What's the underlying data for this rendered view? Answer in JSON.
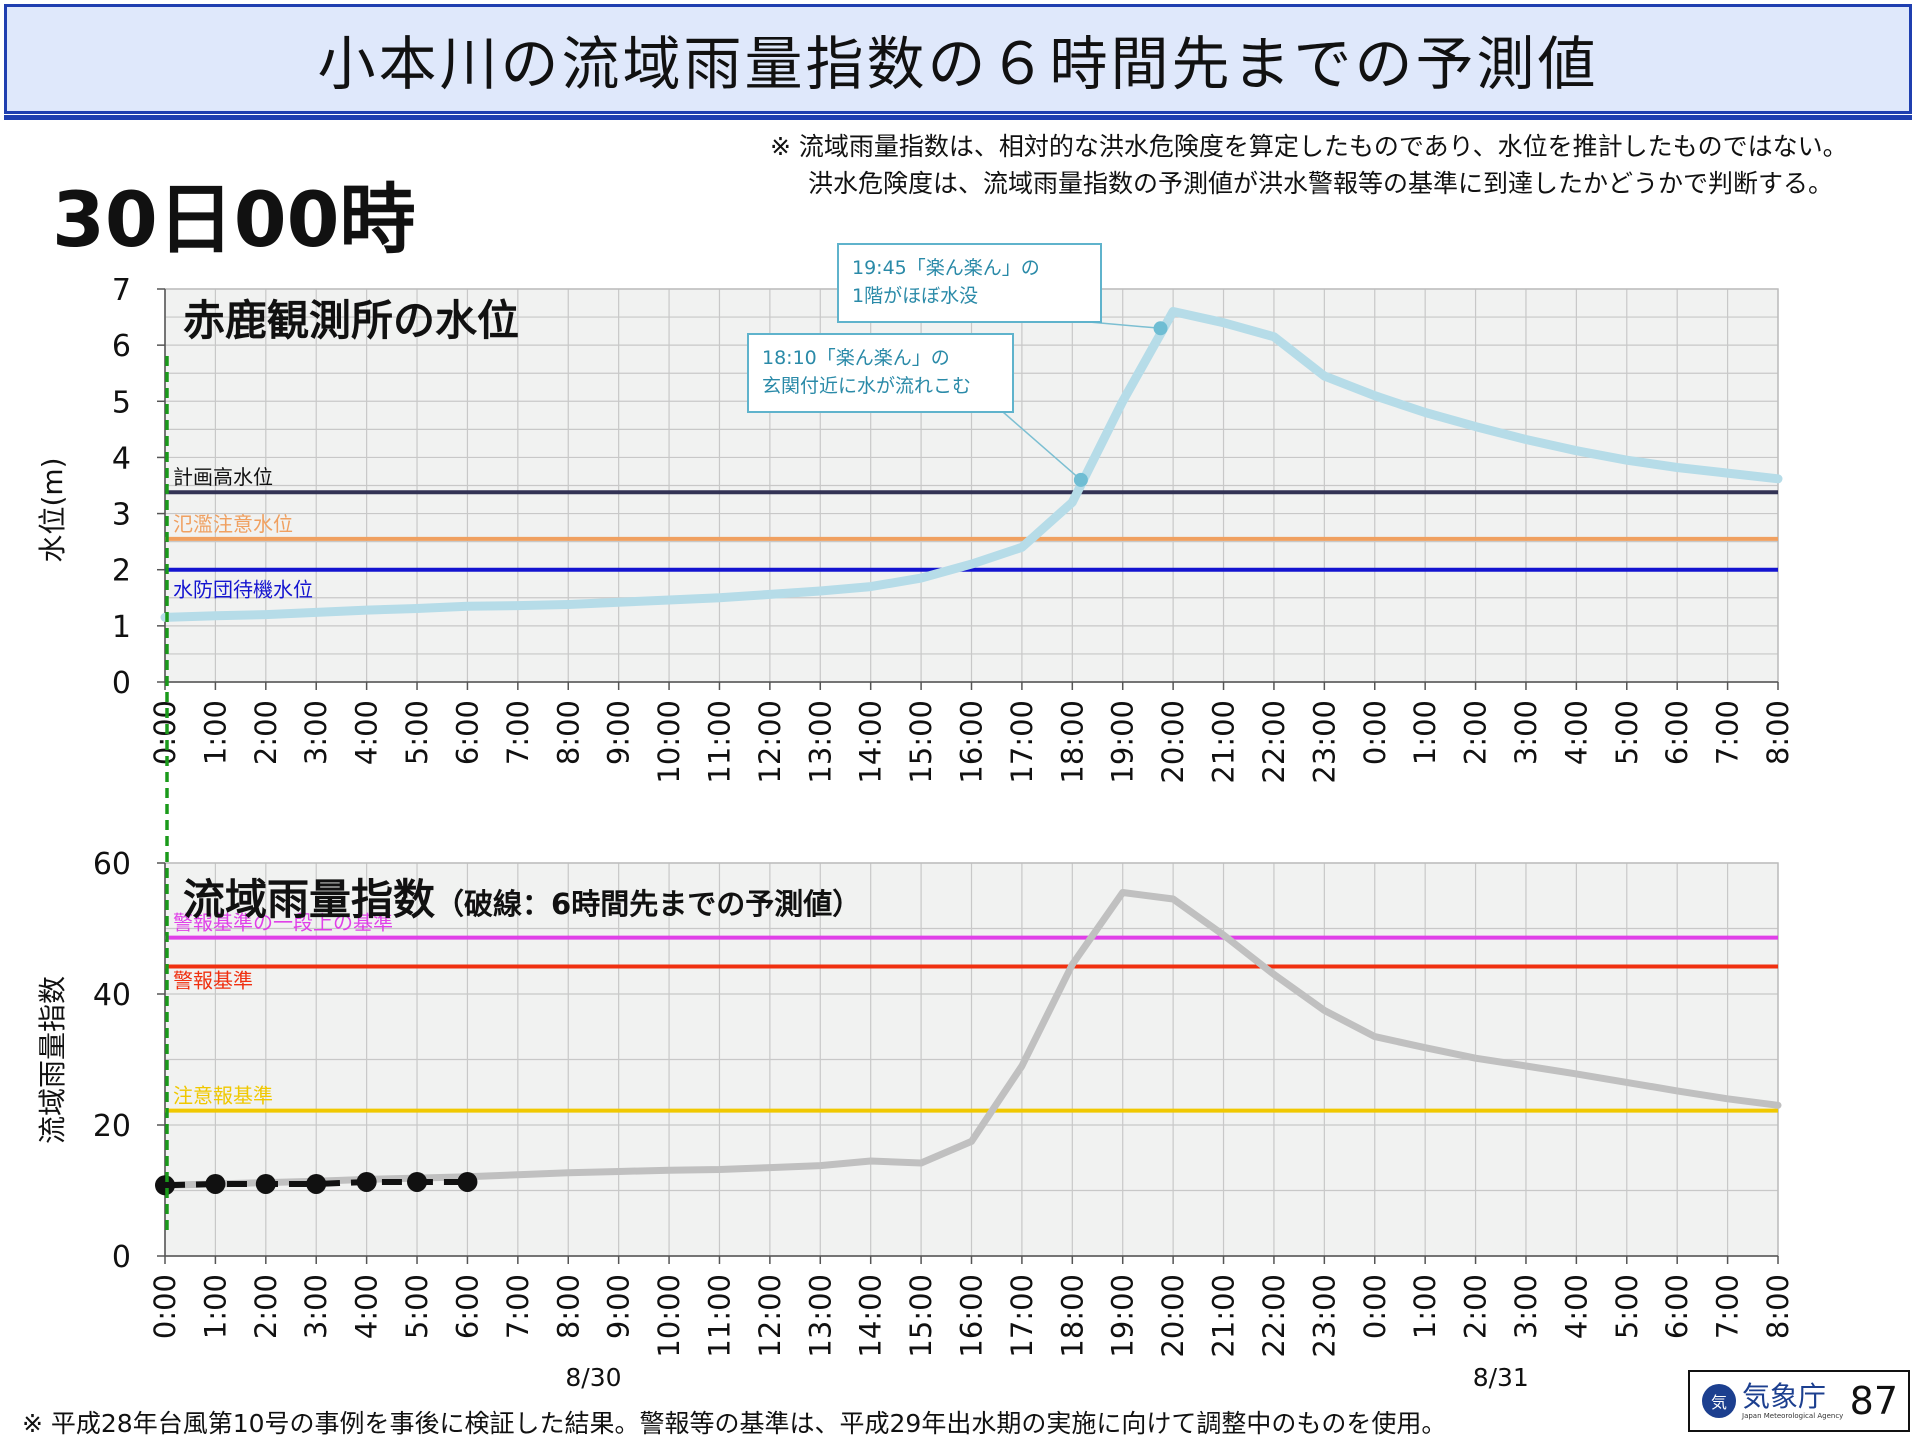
{
  "title": "小本川の流域雨量指数の６時間先までの予測値",
  "note_lines": [
    "※ 流域雨量指数は、相対的な洪水危険度を算定したものであり、水位を推計したものではない。",
    "洪水危険度は、流域雨量指数の予測値が洪水警報等の基準に到達したかどうかで判断する。"
  ],
  "datetime": "30日00時",
  "footnote": "※ 平成28年台風第10号の事例を事後に検証した結果。警報等の基準は、平成29年出水期の実施に向けて調整中のものを使用。",
  "logo": {
    "name": "気象庁",
    "sub": "Japan Meteorological Agency",
    "mark": "気",
    "page": "87"
  },
  "colors": {
    "plot_bg": "#f1f2f1",
    "grid": "#c8c8c8",
    "water": "#b6dce8",
    "water_marker": "#6fbdd3",
    "index": "#c0c0c0",
    "forecast": "#111111",
    "now_line": "#1a9a1a",
    "plan_high": "#333355",
    "flood_caution": "#f0a060",
    "standby": "#1414d0",
    "warn_upper": "#e040e8",
    "warn": "#f03010",
    "advisory": "#f0c800"
  },
  "chart_data": [
    {
      "type": "line",
      "title": "赤鹿観測所の水位",
      "ylabel": "水位(m)",
      "ylim": [
        0,
        7
      ],
      "yticks": [
        0,
        1,
        2,
        3,
        4,
        5,
        6,
        7
      ],
      "grid": true,
      "x_labels": [
        "0:00",
        "1:00",
        "2:00",
        "3:00",
        "4:00",
        "5:00",
        "6:00",
        "7:00",
        "8:00",
        "9:00",
        "10:00",
        "11:00",
        "12:00",
        "13:00",
        "14:00",
        "15:00",
        "16:00",
        "17:00",
        "18:00",
        "19:00",
        "20:00",
        "21:00",
        "22:00",
        "23:00",
        "0:00",
        "1:00",
        "2:00",
        "3:00",
        "4:00",
        "5:00",
        "6:00",
        "7:00",
        "8:00"
      ],
      "series": [
        {
          "role": "water_level",
          "points": [
            [
              0,
              1.15
            ],
            [
              1,
              1.18
            ],
            [
              2,
              1.2
            ],
            [
              3,
              1.24
            ],
            [
              4,
              1.28
            ],
            [
              5,
              1.31
            ],
            [
              6,
              1.35
            ],
            [
              7,
              1.36
            ],
            [
              8,
              1.38
            ],
            [
              9,
              1.42
            ],
            [
              10,
              1.46
            ],
            [
              11,
              1.5
            ],
            [
              12,
              1.56
            ],
            [
              13,
              1.62
            ],
            [
              14,
              1.7
            ],
            [
              15,
              1.85
            ],
            [
              16,
              2.1
            ],
            [
              17,
              2.4
            ],
            [
              18,
              3.2
            ],
            [
              19,
              5.0
            ],
            [
              20,
              6.6
            ],
            [
              21,
              6.4
            ],
            [
              22,
              6.15
            ],
            [
              23,
              5.45
            ],
            [
              24,
              5.1
            ],
            [
              25,
              4.8
            ],
            [
              26,
              4.55
            ],
            [
              27,
              4.32
            ],
            [
              28,
              4.12
            ],
            [
              29,
              3.95
            ],
            [
              30,
              3.82
            ],
            [
              31,
              3.72
            ],
            [
              32,
              3.62
            ]
          ]
        }
      ],
      "reference_lines": [
        {
          "label": "計画高水位",
          "value": 3.38,
          "color_key": "plan_high"
        },
        {
          "label": "氾濫注意水位",
          "value": 2.55,
          "color_key": "flood_caution"
        },
        {
          "label": "水防団待機水位",
          "value": 2.0,
          "color_key": "standby"
        }
      ],
      "annotations": [
        {
          "time_index": 18.17,
          "value": 3.6,
          "lines": [
            "18:10「楽ん楽ん」の",
            "玄関付近に水が流れこむ"
          ]
        },
        {
          "time_index": 19.75,
          "value": 6.3,
          "lines": [
            "19:45「楽ん楽ん」の",
            "1階がほぼ水没"
          ]
        }
      ]
    },
    {
      "type": "line",
      "title": "流域雨量指数",
      "title_sub": "（破線：6時間先までの予測値）",
      "ylabel": "流域雨量指数",
      "ylim": [
        0,
        60
      ],
      "yticks": [
        0,
        20,
        40,
        60
      ],
      "grid": true,
      "x_labels": [
        "0:00",
        "1:00",
        "2:00",
        "3:00",
        "4:00",
        "5:00",
        "6:00",
        "7:00",
        "8:00",
        "9:00",
        "10:00",
        "11:00",
        "12:00",
        "13:00",
        "14:00",
        "15:00",
        "16:00",
        "17:00",
        "18:00",
        "19:00",
        "20:00",
        "21:00",
        "22:00",
        "23:00",
        "0:00",
        "1:00",
        "2:00",
        "3:00",
        "4:00",
        "5:00",
        "6:00",
        "7:00",
        "8:00"
      ],
      "date_labels": [
        {
          "label": "8/30",
          "time_index": 8.5
        },
        {
          "label": "8/31",
          "time_index": 26.5
        }
      ],
      "series": [
        {
          "role": "actual",
          "points": [
            [
              0,
              10.8
            ],
            [
              1,
              11.0
            ],
            [
              2,
              11.2
            ],
            [
              3,
              11.4
            ],
            [
              4,
              11.7
            ],
            [
              5,
              11.9
            ],
            [
              6,
              12.1
            ],
            [
              7,
              12.4
            ],
            [
              8,
              12.7
            ],
            [
              9,
              12.9
            ],
            [
              10,
              13.1
            ],
            [
              11,
              13.2
            ],
            [
              12,
              13.5
            ],
            [
              13,
              13.8
            ],
            [
              14,
              14.5
            ],
            [
              15,
              14.2
            ],
            [
              16,
              17.5
            ],
            [
              17,
              29.0
            ],
            [
              18,
              44.5
            ],
            [
              19,
              55.5
            ],
            [
              20,
              54.5
            ],
            [
              21,
              49.0
            ],
            [
              22,
              43.0
            ],
            [
              23,
              37.5
            ],
            [
              24,
              33.5
            ],
            [
              25,
              31.8
            ],
            [
              26,
              30.2
            ],
            [
              27,
              29.0
            ],
            [
              28,
              27.8
            ],
            [
              29,
              26.5
            ],
            [
              30,
              25.2
            ],
            [
              31,
              24.0
            ],
            [
              32,
              23.0
            ]
          ]
        },
        {
          "role": "forecast",
          "points": [
            [
              0,
              10.8
            ],
            [
              1,
              11.0
            ],
            [
              2,
              11.0
            ],
            [
              3,
              11.0
            ],
            [
              4,
              11.3
            ],
            [
              5,
              11.3
            ],
            [
              6,
              11.3
            ]
          ]
        }
      ],
      "reference_lines": [
        {
          "label": "警報基準の一段上の基準",
          "value": 48.6,
          "color_key": "warn_upper"
        },
        {
          "label": "警報基準",
          "value": 44.2,
          "color_key": "warn"
        },
        {
          "label": "注意報基準",
          "value": 22.2,
          "color_key": "advisory"
        }
      ]
    }
  ]
}
